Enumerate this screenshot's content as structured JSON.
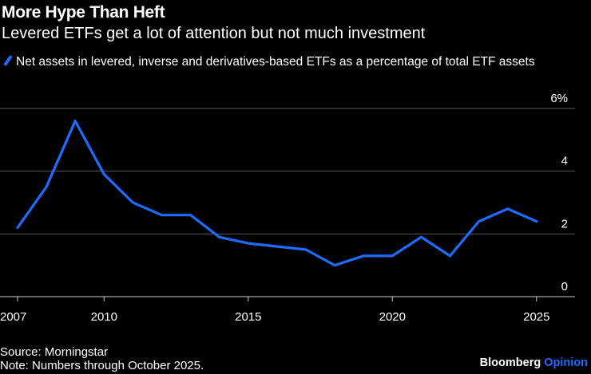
{
  "header": {
    "title": "More Hype Than Heft",
    "subtitle": "Levered ETFs get a lot of attention but not much investment"
  },
  "footer": {
    "source": "Source: Morningstar",
    "note": "Note: Numbers through October 2025.",
    "brand_main": "Bloomberg",
    "brand_accent": "Opinion"
  },
  "colors": {
    "background": "#000000",
    "line": "#1f6bff",
    "grid": "#5a5a5a",
    "text": "#ffffff"
  },
  "chart_data": {
    "type": "line",
    "title": "More Hype Than Heft",
    "subtitle": "Levered ETFs get a lot of attention but not much investment",
    "series": [
      {
        "name": "Net assets in levered, inverse and derivatives-based ETFs as a percentage of total ETF assets",
        "x": [
          2007,
          2008,
          2009,
          2010,
          2011,
          2012,
          2013,
          2014,
          2015,
          2016,
          2017,
          2018,
          2019,
          2020,
          2021,
          2022,
          2023,
          2024,
          2025
        ],
        "values": [
          2.2,
          3.5,
          5.6,
          3.9,
          3.0,
          2.6,
          2.6,
          1.9,
          1.7,
          1.6,
          1.5,
          1.0,
          1.3,
          1.3,
          1.9,
          1.3,
          2.4,
          2.8,
          2.4
        ]
      }
    ],
    "x_ticks": [
      2007,
      2010,
      2015,
      2020,
      2025
    ],
    "x_tick_labels": [
      "2007",
      "2010",
      "2015",
      "2020",
      "2025"
    ],
    "y_ticks": [
      0,
      2,
      4,
      6
    ],
    "y_tick_labels": [
      "0",
      "2",
      "4",
      "6%"
    ],
    "ylim": [
      0,
      6
    ],
    "xlim": [
      2007,
      2025
    ],
    "grid": true,
    "legend_position": "top-left"
  }
}
